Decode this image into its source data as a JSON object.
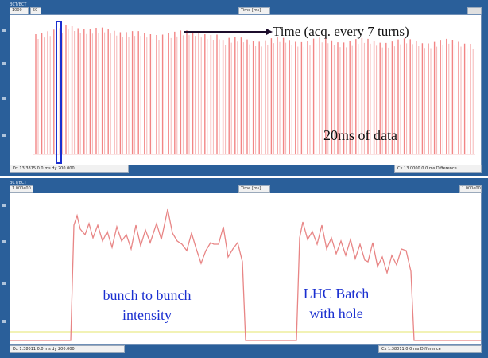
{
  "top_panel": {
    "title": "BCT/BCT",
    "header_box": "1000",
    "header_box_2": "50",
    "axis_header": "Time [ms]",
    "status_left": "Dx 13.3815  0.0 ms  dy 200.000",
    "status_right": "Cx 13.0000 0.0 ms  Difference",
    "annotation_arrow": "Time (acq. every 7 turns)",
    "annotation_data": "20ms of data",
    "line_color": "#f07070"
  },
  "bottom_panel": {
    "title": "BCT/BCT",
    "header_box": "1.000e00",
    "axis_header": "Time [ms]",
    "right_header": "1.000e00",
    "status_left": "Dx 1.38011  0.0 ms  dy 200.000",
    "status_right": "Cx 1.38011  0.0 ms  Difference",
    "annotation_left": "bunch to bunch\nintensity",
    "annotation_right": "LHC Batch\nwith hole",
    "line_color": "#e88585",
    "baseline_color": "#f2f2b5"
  }
}
